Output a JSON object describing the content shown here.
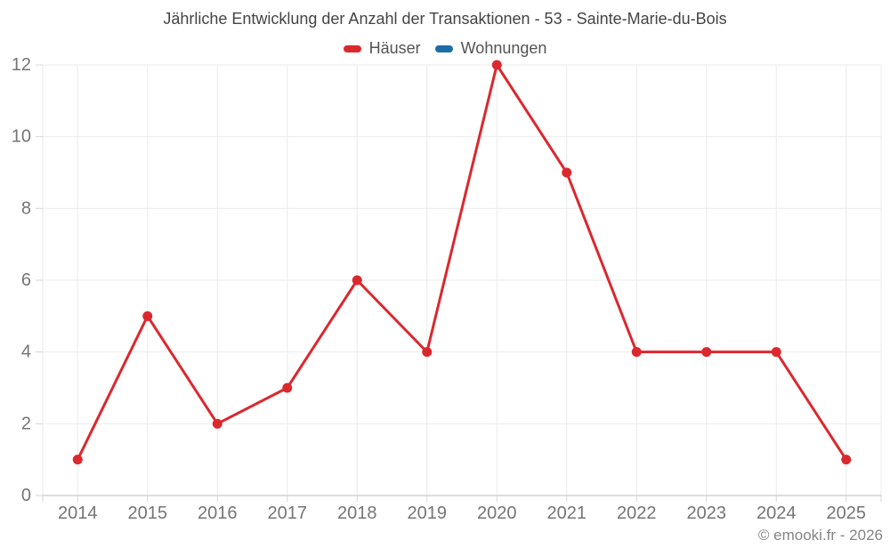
{
  "title": "Jährliche Entwicklung der Anzahl der Transaktionen - 53 - Sainte-Marie-du-Bois",
  "legend": [
    {
      "label": "Häuser",
      "color": "#db282e"
    },
    {
      "label": "Wohnungen",
      "color": "#1c6ea6"
    }
  ],
  "footer": "© emooki.fr - 2026",
  "chart_data": {
    "type": "line",
    "title": "Jährliche Entwicklung der Anzahl der Transaktionen - 53 - Sainte-Marie-du-Bois",
    "categories": [
      "2014",
      "2015",
      "2016",
      "2017",
      "2018",
      "2019",
      "2020",
      "2021",
      "2022",
      "2023",
      "2024",
      "2025"
    ],
    "series": [
      {
        "name": "Häuser",
        "color": "#db282e",
        "visible": true,
        "values": [
          1,
          5,
          2,
          3,
          6,
          4,
          12,
          9,
          4,
          4,
          4,
          1
        ]
      },
      {
        "name": "Wohnungen",
        "color": "#1c6ea6",
        "visible": false,
        "values": []
      }
    ],
    "xlabel": "",
    "ylabel": "",
    "ylim": [
      0,
      12
    ],
    "ytick_step": 2,
    "grid": true,
    "legend_position": "top",
    "colors": {
      "gridline": "#ebebeb",
      "axis_line": "#bdbdbd",
      "tick_mark": "#d6d6d6",
      "axis_label": "#757575"
    }
  }
}
